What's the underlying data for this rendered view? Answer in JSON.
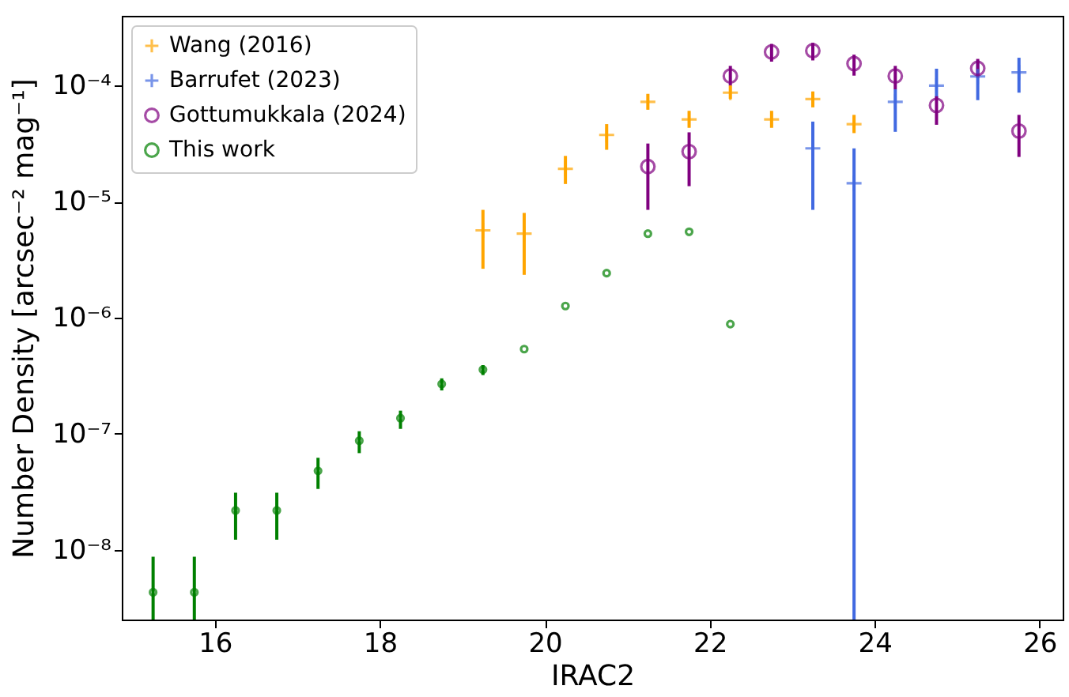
{
  "chart_data": {
    "type": "scatter",
    "xlabel": "IRAC2",
    "ylabel": "Number Density [arcsec⁻² mag⁻¹]",
    "log": "y",
    "legend": "top left",
    "grid": false,
    "xlim": [
      14.87,
      26.28
    ],
    "xticks": [
      16,
      18,
      20,
      22,
      24,
      26
    ],
    "ylim": [
      2.5e-09,
      0.0004
    ],
    "yticks": [
      {
        "value": 1e-08,
        "label": "10⁻⁸"
      },
      {
        "value": 1e-07,
        "label": "10⁻⁷"
      },
      {
        "value": 1e-06,
        "label": "10⁻⁶"
      },
      {
        "value": 1e-05,
        "label": "10⁻⁵"
      },
      {
        "value": 0.0001,
        "label": "10⁻⁴"
      }
    ],
    "series": [
      {
        "name": "Wang (2016)",
        "color": "#ffa500",
        "marker": "cross",
        "x": [
          19.25,
          19.75,
          20.25,
          20.75,
          21.25,
          21.75,
          22.25,
          22.75,
          23.25,
          23.75
        ],
        "values": [
          5.66e-06,
          5.3e-06,
          1.92e-05,
          3.76e-05,
          7.26e-05,
          5.12e-05,
          8.7e-05,
          5.12e-05,
          7.67e-05,
          4.66e-05
        ],
        "errors": [
          [
            2.64e-06,
            8.5e-06
          ],
          [
            2.34e-06,
            8e-06
          ],
          [
            1.42e-05,
            2.48e-05
          ],
          [
            2.8e-05,
            4.66e-05
          ],
          [
            6.2e-05,
            8.5e-05
          ],
          [
            4.33e-05,
            6.07e-05
          ],
          [
            7.7e-05,
            0.0001
          ],
          [
            4.33e-05,
            6.07e-05
          ],
          [
            6.5e-05,
            8.9e-05
          ],
          [
            3.9e-05,
            5.6e-05
          ]
        ]
      },
      {
        "name": "Barrufet (2023)",
        "color": "#4169e1",
        "marker": "cross",
        "x": [
          23.25,
          23.75,
          24.25,
          24.75,
          25.25,
          25.75
        ],
        "values": [
          2.88e-05,
          1.44e-05,
          7.26e-05,
          0.0001,
          0.00012,
          0.00013
        ],
        "errors": [
          [
            8.5e-06,
            4.9e-05
          ],
          [
            2.5e-09,
            2.88e-05
          ],
          [
            4e-05,
            9.3e-05
          ],
          [
            7.5e-05,
            0.00014
          ],
          [
            7.5e-05,
            0.000165
          ],
          [
            8.7e-05,
            0.000174
          ]
        ]
      },
      {
        "name": "Gottumukkala (2024)",
        "color": "#800080",
        "marker": "circle",
        "x": [
          21.25,
          21.75,
          22.25,
          22.75,
          23.25,
          23.75,
          24.25,
          24.75,
          25.25,
          25.75
        ],
        "values": [
          2.01e-05,
          2.7e-05,
          0.000121,
          0.000195,
          0.0002,
          0.000155,
          0.000121,
          6.76e-05,
          0.000141,
          4.06e-05
        ],
        "errors": [
          [
            8.5e-06,
            3.17e-05
          ],
          [
            1.36e-05,
            3.96e-05
          ],
          [
            0.0001,
            0.000148
          ],
          [
            0.000161,
            0.000229
          ],
          [
            0.000165,
            0.000234
          ],
          [
            0.000122,
            0.000185
          ],
          [
            9.3e-05,
            0.000148
          ],
          [
            4.6e-05,
            8.1e-05
          ],
          [
            0.000117,
            0.00017
          ],
          [
            2.43e-05,
            5.6e-05
          ]
        ]
      },
      {
        "name": "This work",
        "color": "#008000",
        "marker": "circle",
        "x": [
          15.25,
          15.75,
          16.25,
          16.75,
          17.25,
          17.75,
          18.25,
          18.75,
          19.25,
          19.75,
          20.25,
          20.75,
          21.25,
          21.75,
          22.25
        ],
        "values": [
          4.3e-09,
          4.3e-09,
          2.18e-08,
          2.18e-08,
          4.78e-08,
          8.7e-08,
          1.36e-07,
          2.68e-07,
          3.57e-07,
          5.36e-07,
          1.26e-06,
          2.42e-06,
          5.3e-06,
          5.5e-06,
          8.8e-07
        ],
        "errors": [
          [
            2.5e-09,
            8.7e-09
          ],
          [
            2.5e-09,
            8.7e-09
          ],
          [
            1.22e-08,
            3.1e-08
          ],
          [
            1.22e-08,
            3.1e-08
          ],
          [
            3.34e-08,
            6.2e-08
          ],
          [
            6.8e-08,
            1.05e-07
          ],
          [
            1.1e-07,
            1.58e-07
          ],
          [
            2.36e-07,
            3e-07
          ],
          [
            3.2e-07,
            3.9e-07
          ],
          null,
          null,
          null,
          null,
          null,
          null
        ]
      }
    ]
  }
}
